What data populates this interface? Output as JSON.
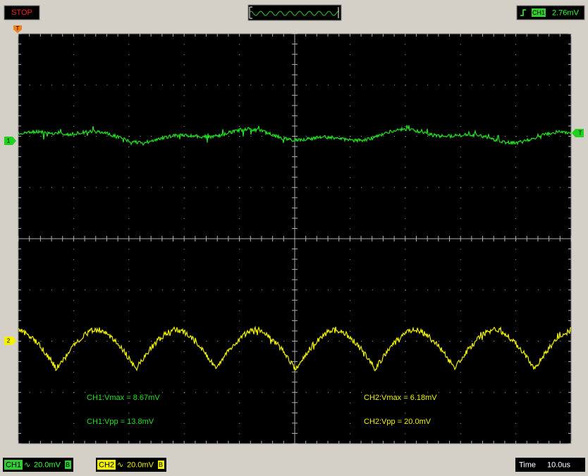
{
  "status": "STOP",
  "trigger": {
    "channel": "CH1",
    "level": "2.76mV",
    "marker": "T"
  },
  "markers": {
    "trigger_position": "T",
    "ch1": "1",
    "ch2": "2"
  },
  "measurements": {
    "ch1_vmax": "CH1:Vmax = 8.67mV",
    "ch1_vpp": "CH1:Vpp = 13.8mV",
    "ch2_vmax": "CH2:Vmax = 6.18mV",
    "ch2_vpp": "CH2:Vpp = 20.0mV"
  },
  "footer": {
    "ch1": {
      "name": "CH1",
      "coupling": "∿",
      "scale": "20.0mV",
      "bandwidth": "B"
    },
    "ch2": {
      "name": "CH2",
      "coupling": "∿",
      "scale": "20.0mV",
      "bandwidth": "B"
    },
    "time_label": "Time",
    "time_scale": "10.0us"
  }
}
